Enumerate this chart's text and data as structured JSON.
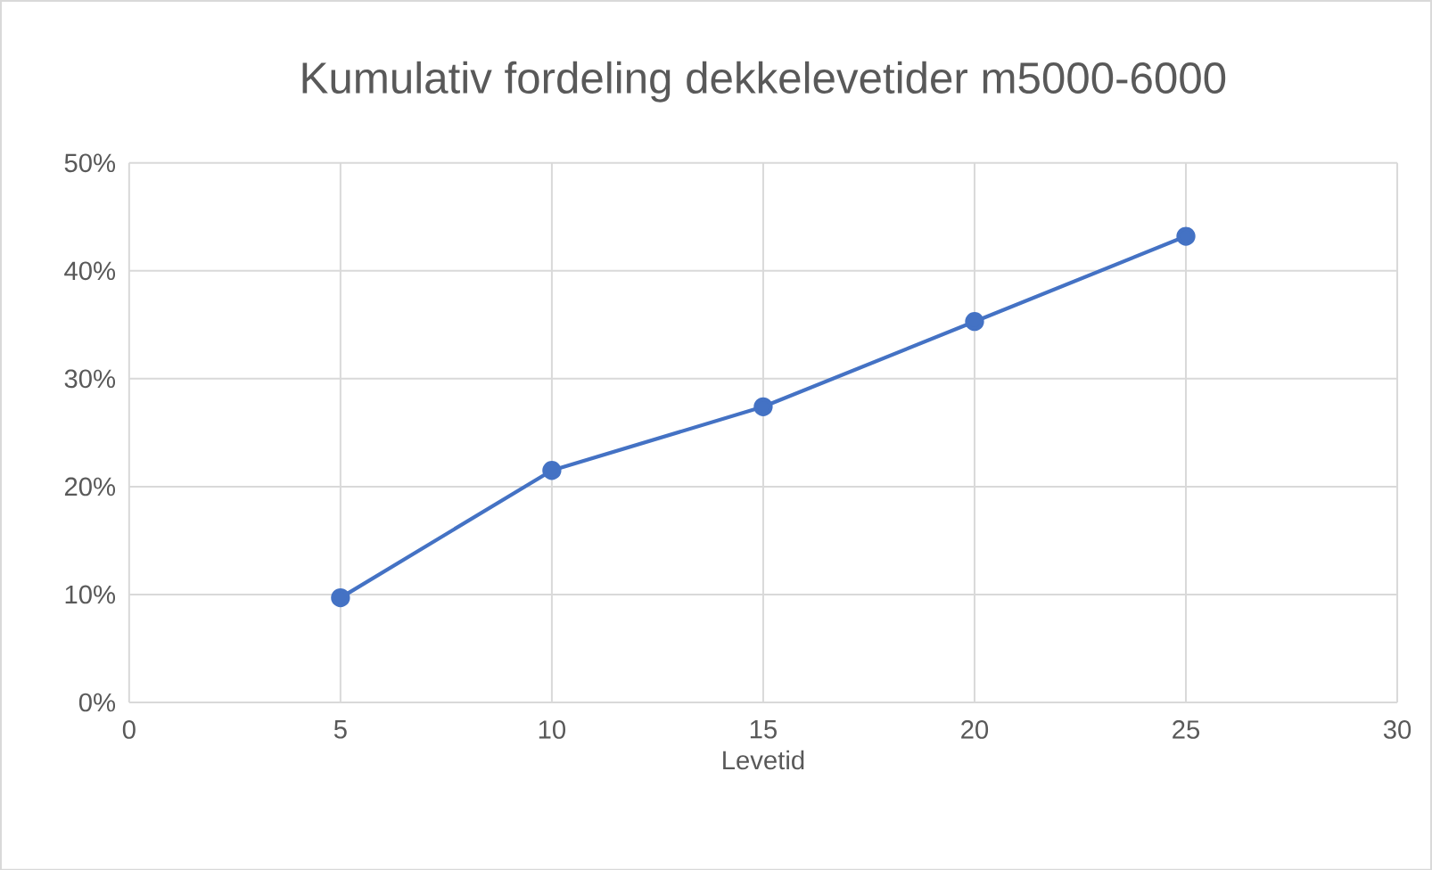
{
  "chart_data": {
    "type": "line",
    "title": "Kumulativ fordeling dekkelevetider m5000-6000",
    "xlabel": "Levetid",
    "x": [
      5,
      10,
      15,
      20,
      25
    ],
    "series": [
      {
        "color": "#4472c4",
        "values": [
          9.7,
          21.5,
          27.4,
          35.3,
          43.2
        ]
      }
    ],
    "xlim": [
      0,
      30
    ],
    "xticks": [
      0,
      5,
      10,
      15,
      20,
      25,
      30
    ],
    "ylim": [
      0,
      50
    ],
    "yticks": [
      {
        "value": 0,
        "label": "0%"
      },
      {
        "value": 10,
        "label": "10%"
      },
      {
        "value": 20,
        "label": "20%"
      },
      {
        "value": 30,
        "label": "30%"
      },
      {
        "value": 40,
        "label": "40%"
      },
      {
        "value": 50,
        "label": "50%"
      }
    ],
    "grid": true,
    "marker": "circle",
    "line_style": "solid"
  }
}
